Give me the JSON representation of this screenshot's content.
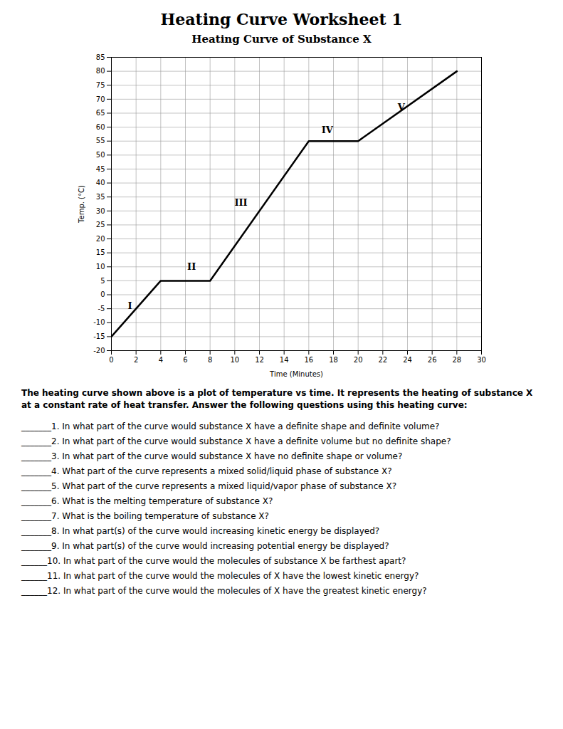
{
  "title": "Heating Curve Worksheet 1",
  "chart_data": {
    "type": "line",
    "title": "Heating Curve of Substance X",
    "xlabel": "Time (Minutes)",
    "ylabel": "Temp. (°C)",
    "x": [
      0,
      4,
      8,
      16,
      20,
      28
    ],
    "values": [
      -15,
      5,
      5,
      55,
      55,
      80
    ],
    "color": "#000000",
    "xlim": [
      0,
      30
    ],
    "ylim": [
      -20,
      85
    ],
    "xticks": [
      0,
      2,
      4,
      6,
      8,
      10,
      12,
      14,
      16,
      18,
      20,
      22,
      24,
      26,
      28,
      30
    ],
    "yticks": [
      -20,
      -15,
      -10,
      -5,
      0,
      5,
      10,
      15,
      20,
      25,
      30,
      35,
      40,
      45,
      50,
      55,
      60,
      65,
      70,
      75,
      80,
      85
    ],
    "grid": true,
    "annotations": [
      {
        "text": "I",
        "x": 1.5,
        "y": -4
      },
      {
        "text": "II",
        "x": 6.5,
        "y": 10
      },
      {
        "text": "III",
        "x": 10.5,
        "y": 33
      },
      {
        "text": "IV",
        "x": 17.5,
        "y": 59
      },
      {
        "text": "V",
        "x": 23.5,
        "y": 67
      }
    ]
  },
  "intro": "The heating curve shown above is a plot of temperature vs time. It represents the heating of substance X at a constant rate of heat transfer. Answer the following questions using this heating curve:",
  "questions": [
    "_______1. In what part of the curve would substance X have a definite shape and definite volume?",
    "_______2. In what part of the curve would substance X have a definite volume but no definite shape?",
    "_______3. In what part of the curve would substance X have no definite shape or volume?",
    "_______4. What part of the curve represents a mixed solid/liquid phase of substance X?",
    "_______5. What part of the curve represents a mixed liquid/vapor phase of substance X?",
    "_______6. What is the melting temperature of substance X?",
    "_______7. What is the boiling temperature of substance X?",
    "_______8. In what part(s) of the curve would increasing kinetic energy be displayed?",
    "_______9. In what part(s) of the curve would increasing potential energy be displayed?",
    "______10. In what part of the curve would the molecules of substance X be farthest apart?",
    "______11. In what part of the curve would the molecules of X have the lowest kinetic energy?",
    "______12. In what part of the curve would the molecules of X have the greatest kinetic energy?"
  ]
}
